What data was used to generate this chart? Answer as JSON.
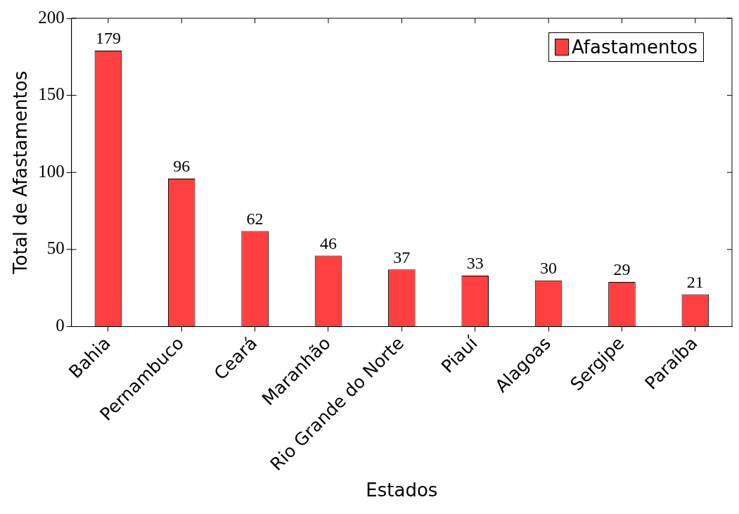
{
  "chart_data": {
    "type": "bar",
    "xlabel": "Estados",
    "ylabel": "Total de Afastamentos",
    "categories": [
      "Bahia",
      "Pernambuco",
      "Ceará",
      "Maranhão",
      "Rio Grande do Norte",
      "Piauí",
      "Alagoas",
      "Sergipe",
      "Paraíba"
    ],
    "series": [
      {
        "name": "Afastamentos",
        "color": "#ff4040",
        "values": [
          179,
          96,
          62,
          46,
          37,
          33,
          30,
          29,
          21
        ]
      }
    ],
    "ylim": [
      0,
      200
    ],
    "yticks": [
      0,
      50,
      100,
      150,
      200
    ],
    "grid": false,
    "legend": "top right",
    "data_labels": true
  }
}
